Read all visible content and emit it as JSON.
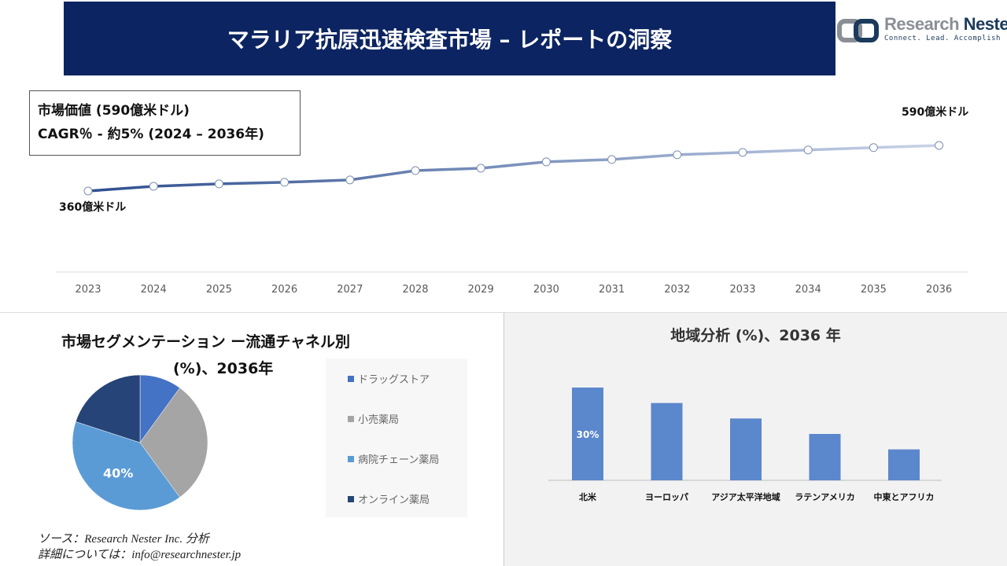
{
  "header": {
    "title": "マラリア抗原迅速検査市場 – レポートの洞察"
  },
  "logo": {
    "name_light": "Research ",
    "name_dark": "Nester",
    "tagline": "Connect. Lead. Accomplish"
  },
  "info": {
    "market_value": "市場価値 (590億米ドル)",
    "cagr": "CAGR％ - 約5% (2024 – 2036年)"
  },
  "colors": {
    "header": "#0c2461",
    "line_start": "#2e4f8f",
    "line_end": "#c9d3e8",
    "bar": "#5b87cc",
    "pie": [
      "#4472c4",
      "#a5a5a5",
      "#5b9bd5",
      "#264478"
    ]
  },
  "chart_data": [
    {
      "type": "line",
      "x": [
        "2023",
        "2024",
        "2025",
        "2026",
        "2027",
        "2028",
        "2029",
        "2030",
        "2031",
        "2032",
        "2033",
        "2034",
        "2035",
        "2036"
      ],
      "values": [
        360,
        384,
        396,
        404,
        416,
        463,
        475,
        507,
        519,
        543,
        555,
        567,
        579,
        590
      ],
      "annotations": {
        "start": "360億米ドル",
        "end": "590億米ドル"
      },
      "grid": false
    },
    {
      "type": "pie",
      "title": "市場セグメンテーション ー流通チャネル別",
      "subtitle": "(%)、2036年",
      "categories": [
        "ドラッグストア",
        "小売薬局",
        "病院チェーン薬局",
        "オンライン薬局"
      ],
      "values": [
        10,
        30,
        40,
        20
      ],
      "data_labels": {
        "2": "40%"
      },
      "legend": "right"
    },
    {
      "type": "bar",
      "title": "地域分析 (%)、2036 年",
      "categories": [
        "北米",
        "ヨーロッパ",
        "アジア太平洋地域",
        "ラテンアメリカ",
        "中東とアフリカ"
      ],
      "values": [
        30,
        25,
        20,
        15,
        10
      ],
      "data_labels": {
        "0": "30%"
      }
    }
  ],
  "footer": {
    "source": "ソース：Research Nester Inc. 分析",
    "contact": "詳細については：info@researchnester.jp"
  }
}
